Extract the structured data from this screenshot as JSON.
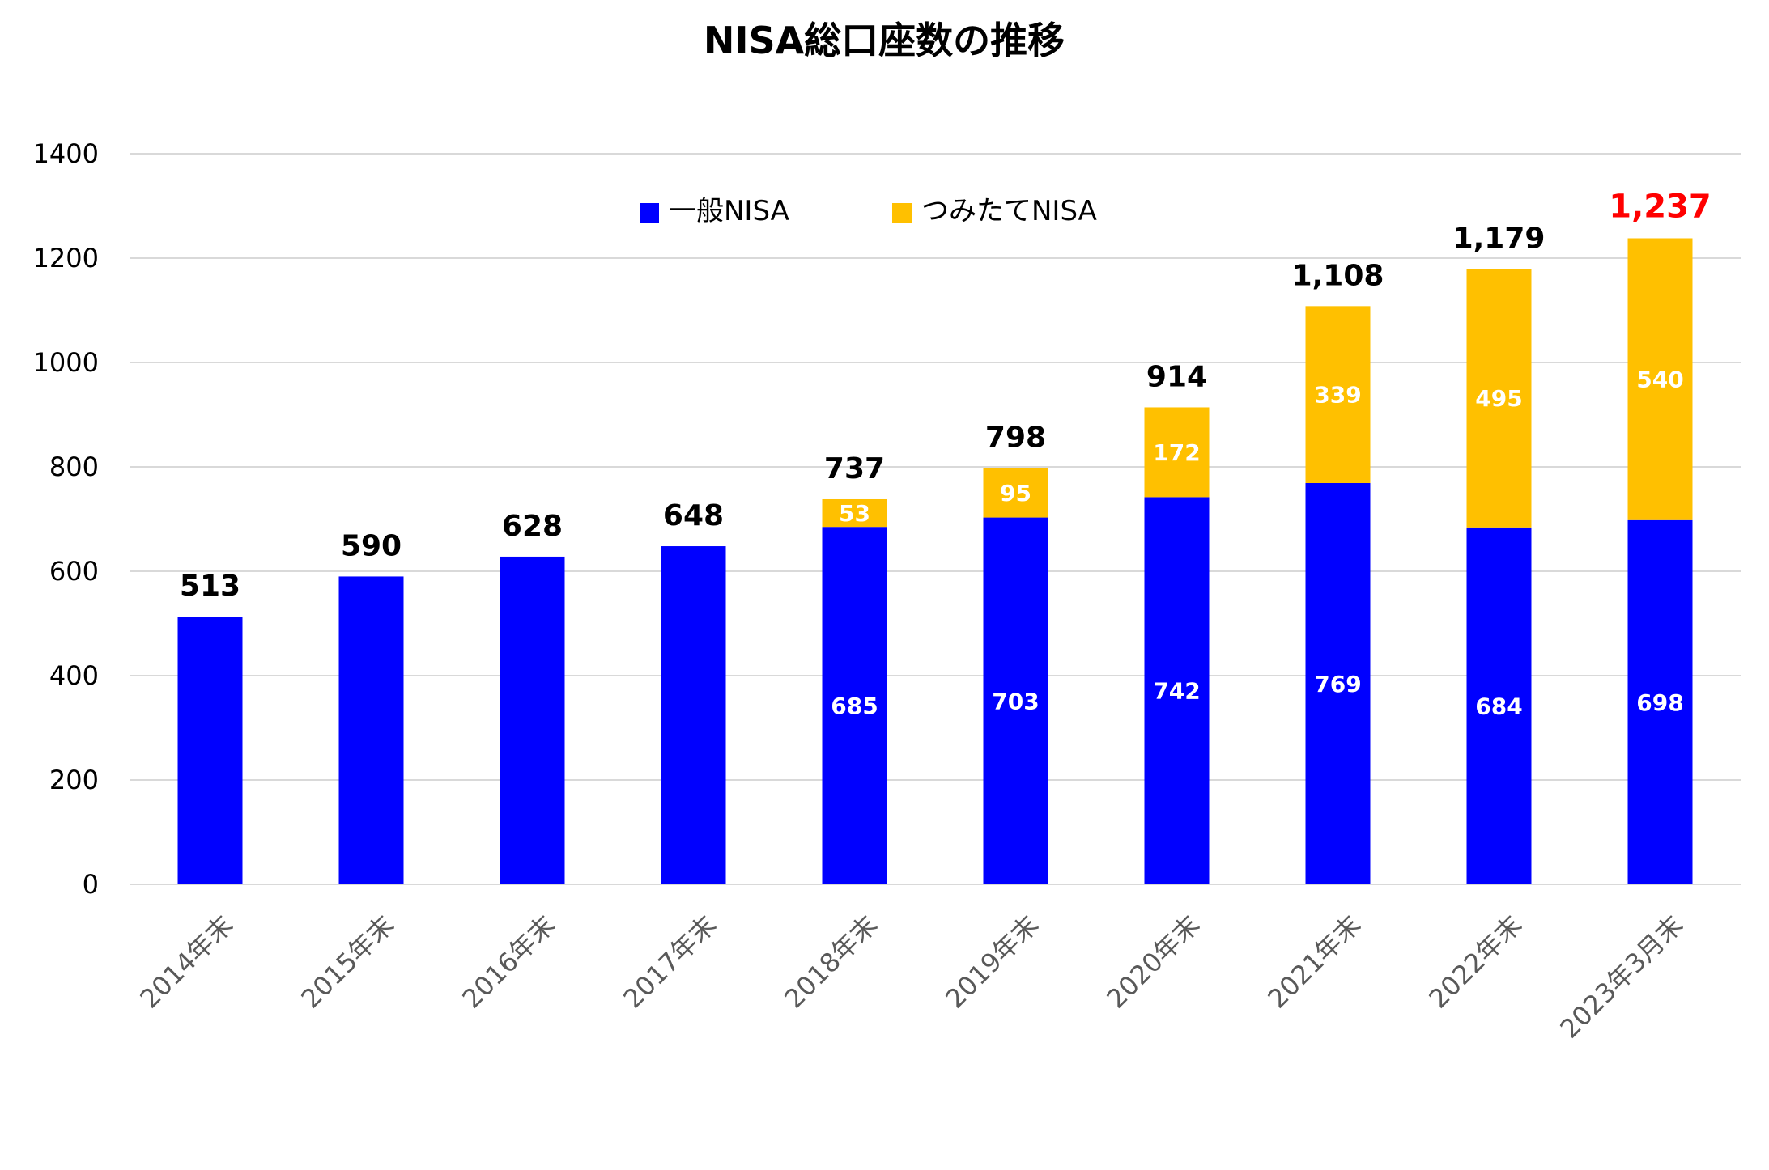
{
  "chart_data": {
    "type": "bar",
    "stacked": true,
    "title": "NISA総口座数の推移",
    "categories": [
      "2014年末",
      "2015年末",
      "2016年末",
      "2017年末",
      "2018年末",
      "2019年末",
      "2020年末",
      "2021年末",
      "2022年末",
      "2023年3月末"
    ],
    "series": [
      {
        "name": "一般NISA",
        "color": "#0000ff",
        "values": [
          513,
          590,
          628,
          648,
          685,
          703,
          742,
          769,
          684,
          698
        ],
        "labels": [
          "",
          "",
          "",
          "",
          "685",
          "703",
          "742",
          "769",
          "684",
          "698"
        ]
      },
      {
        "name": "つみたてNISA",
        "color": "#ffc000",
        "values": [
          0,
          0,
          0,
          0,
          53,
          95,
          172,
          339,
          495,
          540
        ],
        "labels": [
          "",
          "",
          "",
          "",
          "53",
          "95",
          "172",
          "339",
          "495",
          "540"
        ]
      }
    ],
    "totals": [
      "513",
      "590",
      "628",
      "648",
      "737",
      "798",
      "914",
      "1,108",
      "1,179",
      "1,237"
    ],
    "highlight_color": "#ff0000",
    "yticks": [
      "0",
      "200",
      "400",
      "600",
      "800",
      "1000",
      "1200",
      "1400"
    ],
    "ylim": [
      0,
      1400
    ],
    "grid": true,
    "legend": "top-center",
    "xlabel": "",
    "ylabel": ""
  }
}
